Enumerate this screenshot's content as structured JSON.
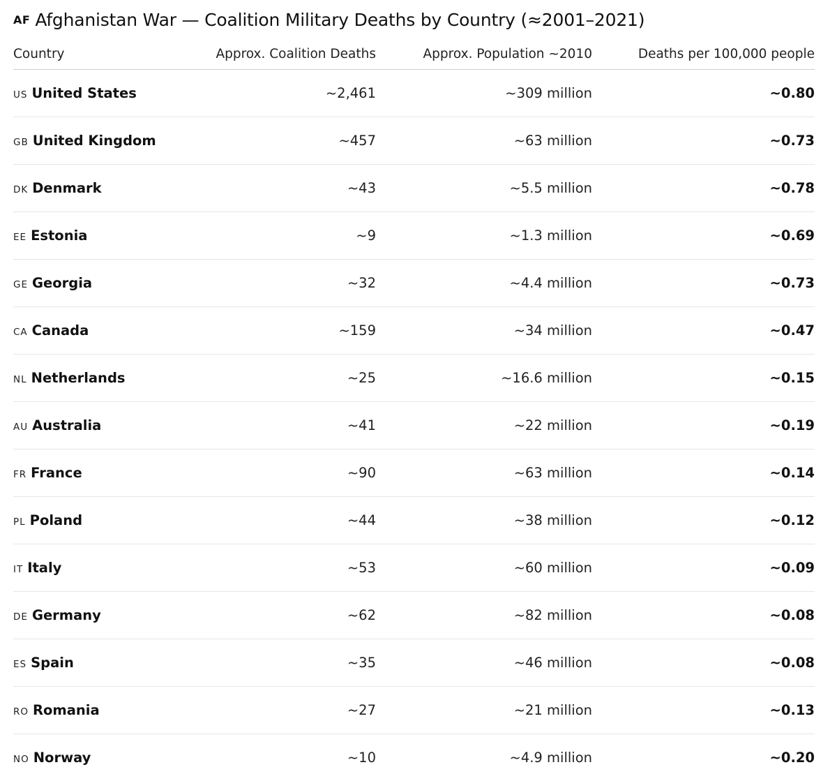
{
  "title": {
    "flag": "AF",
    "text": "Afghanistan War — Coalition Military Deaths by Country (≈2001–2021)"
  },
  "table": {
    "headers": [
      "Country",
      "Approx. Coalition Deaths",
      "Approx. Population ~2010",
      "Deaths per 100,000 people"
    ],
    "rows": [
      {
        "code": "US",
        "country": "United States",
        "deaths": "~2,461",
        "population": "~309 million",
        "rate": "~0.80"
      },
      {
        "code": "GB",
        "country": "United Kingdom",
        "deaths": "~457",
        "population": "~63 million",
        "rate": "~0.73"
      },
      {
        "code": "DK",
        "country": "Denmark",
        "deaths": "~43",
        "population": "~5.5 million",
        "rate": "~0.78"
      },
      {
        "code": "EE",
        "country": "Estonia",
        "deaths": "~9",
        "population": "~1.3 million",
        "rate": "~0.69"
      },
      {
        "code": "GE",
        "country": "Georgia",
        "deaths": "~32",
        "population": "~4.4 million",
        "rate": "~0.73"
      },
      {
        "code": "CA",
        "country": "Canada",
        "deaths": "~159",
        "population": "~34 million",
        "rate": "~0.47"
      },
      {
        "code": "NL",
        "country": "Netherlands",
        "deaths": "~25",
        "population": "~16.6 million",
        "rate": "~0.15"
      },
      {
        "code": "AU",
        "country": "Australia",
        "deaths": "~41",
        "population": "~22 million",
        "rate": "~0.19"
      },
      {
        "code": "FR",
        "country": "France",
        "deaths": "~90",
        "population": "~63 million",
        "rate": "~0.14"
      },
      {
        "code": "PL",
        "country": "Poland",
        "deaths": "~44",
        "population": "~38 million",
        "rate": "~0.12"
      },
      {
        "code": "IT",
        "country": "Italy",
        "deaths": "~53",
        "population": "~60 million",
        "rate": "~0.09"
      },
      {
        "code": "DE",
        "country": "Germany",
        "deaths": "~62",
        "population": "~82 million",
        "rate": "~0.08"
      },
      {
        "code": "ES",
        "country": "Spain",
        "deaths": "~35",
        "population": "~46 million",
        "rate": "~0.08"
      },
      {
        "code": "RO",
        "country": "Romania",
        "deaths": "~27",
        "population": "~21 million",
        "rate": "~0.13"
      },
      {
        "code": "NO",
        "country": "Norway",
        "deaths": "~10",
        "population": "~4.9 million",
        "rate": "~0.20"
      }
    ]
  }
}
